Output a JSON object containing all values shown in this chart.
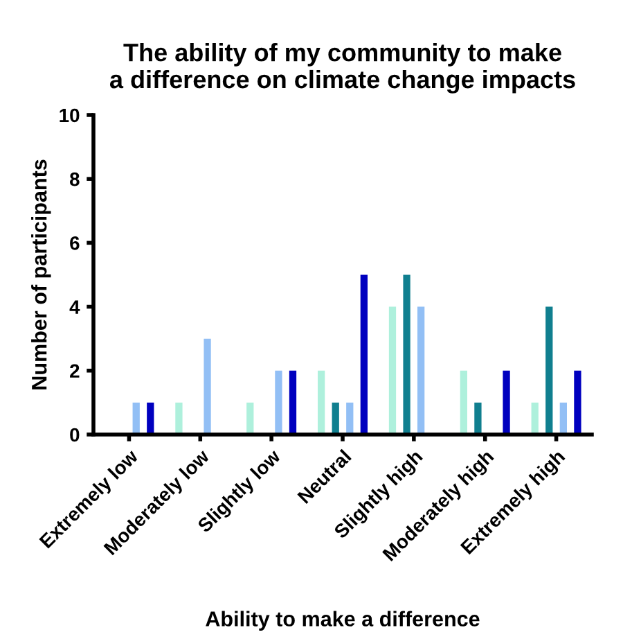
{
  "chart_data": {
    "type": "bar",
    "title": "The ability of my community to make\na difference on climate change impacts",
    "xlabel": "Ability to make a difference",
    "ylabel": "Number of participants",
    "categories": [
      "Extremely low",
      "Moderately low",
      "Slightly low",
      "Neutral",
      "Slightly high",
      "Moderately high",
      "Extremely high"
    ],
    "series": [
      {
        "color": "#aef0dc",
        "values": [
          0,
          1,
          1,
          2,
          4,
          2,
          1
        ]
      },
      {
        "color": "#107f8f",
        "values": [
          0,
          0,
          0,
          1,
          5,
          1,
          4
        ]
      },
      {
        "color": "#92bff5",
        "values": [
          1,
          3,
          2,
          1,
          4,
          0,
          1
        ]
      },
      {
        "color": "#0000bf",
        "values": [
          1,
          0,
          2,
          5,
          0,
          2,
          2
        ]
      }
    ],
    "ylim": [
      0,
      10
    ],
    "yticks": [
      0,
      2,
      4,
      6,
      8,
      10
    ],
    "grid": false,
    "legend": false
  }
}
